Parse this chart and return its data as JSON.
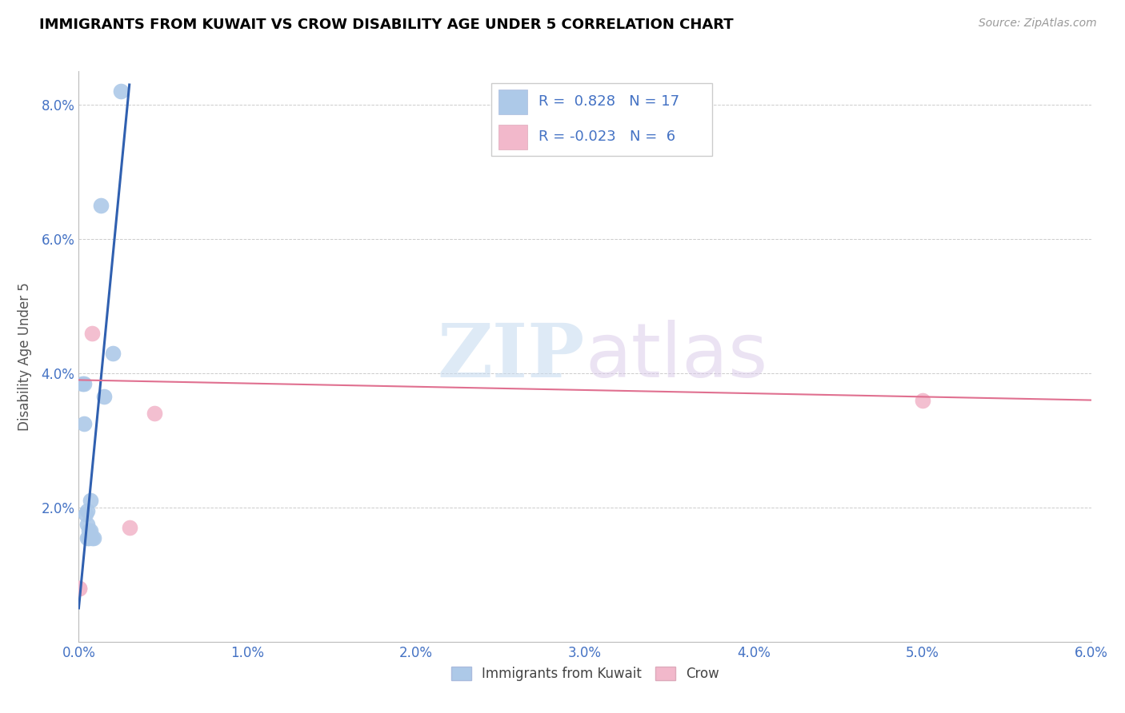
{
  "title": "IMMIGRANTS FROM KUWAIT VS CROW DISABILITY AGE UNDER 5 CORRELATION CHART",
  "source": "Source: ZipAtlas.com",
  "ylabel": "Disability Age Under 5",
  "xlim": [
    0.0,
    0.06
  ],
  "ylim": [
    0.0,
    0.085
  ],
  "xticks": [
    0.0,
    0.01,
    0.02,
    0.03,
    0.04,
    0.05,
    0.06
  ],
  "yticks": [
    0.0,
    0.02,
    0.04,
    0.06,
    0.08
  ],
  "xticklabels": [
    "0.0%",
    "1.0%",
    "2.0%",
    "3.0%",
    "4.0%",
    "5.0%",
    "6.0%"
  ],
  "yticklabels": [
    "",
    "2.0%",
    "4.0%",
    "6.0%",
    "8.0%"
  ],
  "blue_color": "#adc9e8",
  "pink_color": "#f2b8cb",
  "blue_line_color": "#3060b0",
  "pink_line_color": "#e07090",
  "legend_r_blue": "0.828",
  "legend_n_blue": "17",
  "legend_r_pink": "-0.023",
  "legend_n_pink": "6",
  "legend_label_blue": "Immigrants from Kuwait",
  "legend_label_pink": "Crow",
  "watermark_zip": "ZIP",
  "watermark_atlas": "atlas",
  "blue_points": [
    [
      0.0002,
      0.0385
    ],
    [
      0.0003,
      0.0385
    ],
    [
      0.0003,
      0.0325
    ],
    [
      0.0004,
      0.019
    ],
    [
      0.0005,
      0.0195
    ],
    [
      0.0005,
      0.0175
    ],
    [
      0.0005,
      0.0155
    ],
    [
      0.0006,
      0.0165
    ],
    [
      0.0006,
      0.0155
    ],
    [
      0.0007,
      0.021
    ],
    [
      0.0007,
      0.0165
    ],
    [
      0.0008,
      0.0155
    ],
    [
      0.0009,
      0.0155
    ],
    [
      0.0013,
      0.065
    ],
    [
      0.0015,
      0.0365
    ],
    [
      0.002,
      0.043
    ],
    [
      0.0025,
      0.082
    ]
  ],
  "pink_points": [
    [
      5e-05,
      0.008
    ],
    [
      5e-05,
      0.008
    ],
    [
      0.0008,
      0.046
    ],
    [
      0.003,
      0.017
    ],
    [
      0.0045,
      0.034
    ],
    [
      0.05,
      0.036
    ]
  ],
  "blue_trendline_x": [
    0.0,
    0.003
  ],
  "blue_trendline_y": [
    0.005,
    0.083
  ],
  "pink_trendline_x": [
    0.0,
    0.06
  ],
  "pink_trendline_y": [
    0.039,
    0.036
  ],
  "title_fontsize": 13,
  "source_fontsize": 10,
  "tick_fontsize": 12,
  "ylabel_fontsize": 12
}
